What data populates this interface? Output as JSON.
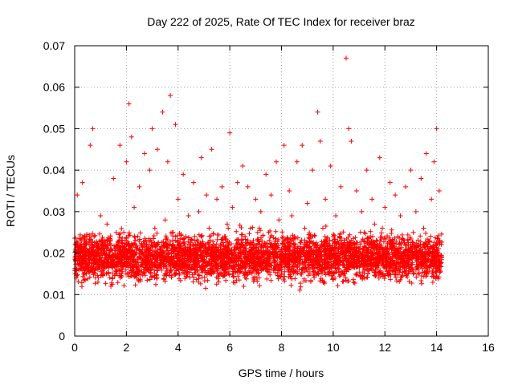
{
  "chart_data": {
    "type": "scatter",
    "title": "Day 222 of 2025, Rate Of TEC Index for receiver braz",
    "xlabel": "GPS time / hours",
    "ylabel": "ROTI / TECUs",
    "xlim": [
      0,
      16
    ],
    "ylim": [
      0,
      0.07
    ],
    "x_ticks": [
      "0",
      "2",
      "4",
      "6",
      "8",
      "10",
      "12",
      "14",
      "16"
    ],
    "y_ticks": [
      "0",
      "0.01",
      "0.02",
      "0.03",
      "0.04",
      "0.05",
      "0.06",
      "0.07"
    ],
    "grid": true,
    "marker": "+",
    "color": "#ff0000",
    "series": [
      {
        "x": [
          0.05,
          0.1,
          0.2,
          0.3,
          0.45,
          0.6,
          0.7,
          0.75,
          0.9,
          1.0,
          1.1,
          1.25,
          1.4,
          1.5,
          1.6,
          1.75,
          1.9,
          2.0,
          2.1,
          2.2,
          2.25,
          2.3,
          2.4,
          2.5,
          2.6,
          2.7,
          2.8,
          2.9,
          3.0,
          3.1,
          3.2,
          3.3,
          3.4,
          3.5,
          3.6,
          3.7,
          3.8,
          3.9,
          4.0,
          4.1,
          4.2,
          4.3,
          4.4,
          4.5,
          4.6,
          4.7,
          4.8,
          4.9,
          5.0,
          5.1,
          5.2,
          5.3,
          5.4,
          5.5,
          5.6,
          5.7,
          5.8,
          5.9,
          6.0,
          6.1,
          6.2,
          6.3,
          6.4,
          6.5,
          6.6,
          6.7,
          6.8,
          6.9,
          7.0,
          7.1,
          7.2,
          7.3,
          7.4,
          7.5,
          7.6,
          7.7,
          7.8,
          7.9,
          8.0,
          8.1,
          8.2,
          8.3,
          8.4,
          8.5,
          8.6,
          8.7,
          8.8,
          8.9,
          9.0,
          9.1,
          9.2,
          9.3,
          9.4,
          9.5,
          9.6,
          9.7,
          9.8,
          9.9,
          10.0,
          10.1,
          10.2,
          10.3,
          10.4,
          10.5,
          10.6,
          10.7,
          10.8,
          10.9,
          11.0,
          11.1,
          11.2,
          11.3,
          11.4,
          11.5,
          11.6,
          11.7,
          11.8,
          11.9,
          12.0,
          12.1,
          12.2,
          12.3,
          12.4,
          12.5,
          12.6,
          12.7,
          12.8,
          12.9,
          13.0,
          13.1,
          13.2,
          13.3,
          13.4,
          13.5,
          13.6,
          13.7,
          13.8,
          13.9,
          14.0,
          14.1
        ],
        "y": [
          0.022,
          0.034,
          0.018,
          0.037,
          0.015,
          0.046,
          0.05,
          0.024,
          0.013,
          0.029,
          0.021,
          0.027,
          0.012,
          0.038,
          0.019,
          0.046,
          0.025,
          0.042,
          0.056,
          0.048,
          0.02,
          0.031,
          0.014,
          0.036,
          0.022,
          0.044,
          0.018,
          0.04,
          0.05,
          0.026,
          0.045,
          0.019,
          0.054,
          0.028,
          0.042,
          0.058,
          0.022,
          0.051,
          0.033,
          0.017,
          0.039,
          0.024,
          0.029,
          0.016,
          0.037,
          0.021,
          0.03,
          0.043,
          0.018,
          0.034,
          0.026,
          0.045,
          0.02,
          0.033,
          0.015,
          0.036,
          0.024,
          0.027,
          0.049,
          0.031,
          0.018,
          0.037,
          0.022,
          0.041,
          0.019,
          0.036,
          0.026,
          0.014,
          0.033,
          0.023,
          0.03,
          0.018,
          0.039,
          0.025,
          0.034,
          0.02,
          0.042,
          0.028,
          0.017,
          0.046,
          0.021,
          0.035,
          0.029,
          0.024,
          0.042,
          0.018,
          0.046,
          0.026,
          0.032,
          0.015,
          0.04,
          0.022,
          0.054,
          0.047,
          0.026,
          0.033,
          0.019,
          0.041,
          0.024,
          0.029,
          0.017,
          0.036,
          0.022,
          0.067,
          0.05,
          0.047,
          0.021,
          0.035,
          0.018,
          0.03,
          0.025,
          0.04,
          0.016,
          0.033,
          0.027,
          0.019,
          0.043,
          0.026,
          0.031,
          0.022,
          0.037,
          0.018,
          0.034,
          0.024,
          0.029,
          0.017,
          0.036,
          0.021,
          0.04,
          0.025,
          0.03,
          0.019,
          0.038,
          0.026,
          0.044,
          0.02,
          0.033,
          0.042,
          0.05,
          0.035
        ]
      }
    ]
  }
}
